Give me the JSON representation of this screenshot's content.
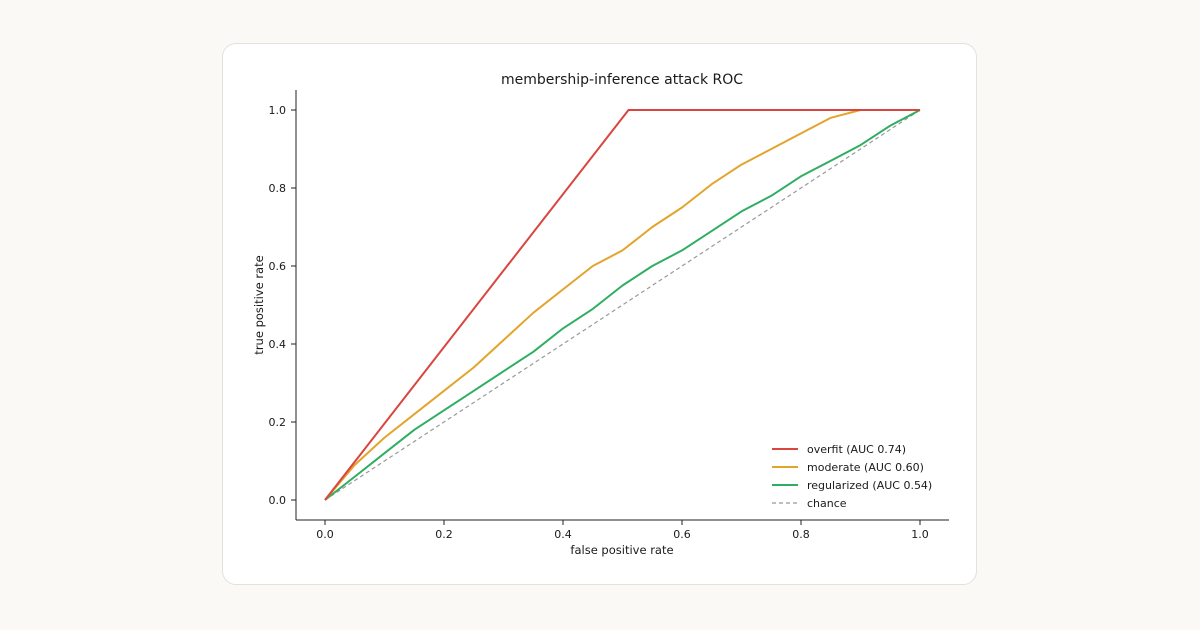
{
  "chart_data": {
    "type": "line",
    "title": "membership-inference attack ROC",
    "xlabel": "false positive rate",
    "ylabel": "true positive rate",
    "xlim": [
      0.0,
      1.0
    ],
    "ylim": [
      0.0,
      1.0
    ],
    "xticks": [
      0.0,
      0.2,
      0.4,
      0.6,
      0.8,
      1.0
    ],
    "yticks": [
      0.0,
      0.2,
      0.4,
      0.6,
      0.8,
      1.0
    ],
    "xtick_labels": [
      "0.0",
      "0.2",
      "0.4",
      "0.6",
      "0.8",
      "1.0"
    ],
    "ytick_labels": [
      "0.0",
      "0.2",
      "0.4",
      "0.6",
      "0.8",
      "1.0"
    ],
    "grid": false,
    "legend_position": "bottom-right",
    "series": [
      {
        "name": "overfit (AUC 0.74)",
        "color": "#d9453f",
        "style": "solid",
        "x": [
          0.0,
          0.51,
          1.0
        ],
        "y": [
          0.0,
          1.0,
          1.0
        ]
      },
      {
        "name": "moderate (AUC 0.60)",
        "color": "#e3a42a",
        "style": "solid",
        "x": [
          0.0,
          0.05,
          0.1,
          0.15,
          0.2,
          0.25,
          0.3,
          0.35,
          0.4,
          0.45,
          0.5,
          0.55,
          0.6,
          0.65,
          0.7,
          0.75,
          0.8,
          0.85,
          0.9,
          0.95,
          1.0
        ],
        "y": [
          0.0,
          0.09,
          0.16,
          0.22,
          0.28,
          0.34,
          0.41,
          0.48,
          0.54,
          0.6,
          0.64,
          0.7,
          0.75,
          0.81,
          0.86,
          0.9,
          0.94,
          0.98,
          1.0,
          1.0,
          1.0
        ]
      },
      {
        "name": "regularized (AUC 0.54)",
        "color": "#2fae62",
        "style": "solid",
        "x": [
          0.0,
          0.05,
          0.1,
          0.15,
          0.2,
          0.25,
          0.3,
          0.35,
          0.4,
          0.45,
          0.5,
          0.55,
          0.6,
          0.65,
          0.7,
          0.75,
          0.8,
          0.85,
          0.9,
          0.95,
          1.0
        ],
        "y": [
          0.0,
          0.06,
          0.12,
          0.18,
          0.23,
          0.28,
          0.33,
          0.38,
          0.44,
          0.49,
          0.55,
          0.6,
          0.64,
          0.69,
          0.74,
          0.78,
          0.83,
          0.87,
          0.91,
          0.96,
          1.0
        ]
      },
      {
        "name": "chance",
        "color": "#999999",
        "style": "dashed",
        "x": [
          0.0,
          1.0
        ],
        "y": [
          0.0,
          1.0
        ]
      }
    ]
  }
}
